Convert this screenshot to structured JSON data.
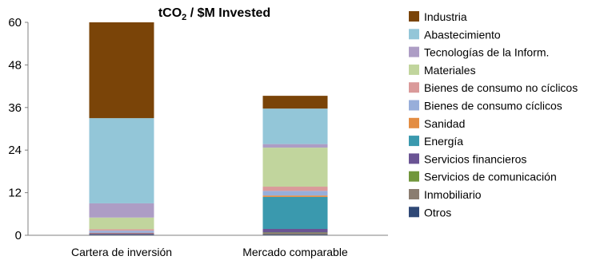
{
  "chart_data": {
    "type": "bar",
    "stacked": true,
    "title_main": "tCO",
    "title_sub": "2",
    "title_rest": " / $M Invested",
    "categories": [
      "Cartera de inversión",
      "Mercado comparable"
    ],
    "ylim": [
      0,
      60
    ],
    "yticks": [
      "0",
      "12",
      "24",
      "36",
      "48",
      "60"
    ],
    "ytick_values": [
      0,
      12,
      24,
      36,
      48,
      60
    ],
    "legend_position": "right",
    "series": [
      {
        "name": "Otros",
        "color": "#2F4876",
        "values": [
          0.2,
          0.2
        ]
      },
      {
        "name": "Inmobiliario",
        "color": "#8B7D70",
        "values": [
          0.1,
          0.5
        ]
      },
      {
        "name": "Servicios de comunicación",
        "color": "#71963B",
        "values": [
          0.0,
          0.1
        ]
      },
      {
        "name": "Servicios financieros",
        "color": "#6A5494",
        "values": [
          0.3,
          1.0
        ]
      },
      {
        "name": "Energía",
        "color": "#3A99AE",
        "values": [
          0.0,
          9.0
        ]
      },
      {
        "name": "Sanidad",
        "color": "#E38D43",
        "values": [
          0.1,
          0.4
        ]
      },
      {
        "name": "Bienes de consumo cíclicos",
        "color": "#98AEDA",
        "values": [
          0.6,
          1.3
        ]
      },
      {
        "name": "Bienes de consumo no cíclicos",
        "color": "#DA9A9A",
        "values": [
          0.4,
          1.2
        ]
      },
      {
        "name": "Materiales",
        "color": "#C1D59D",
        "values": [
          3.3,
          11.0
        ]
      },
      {
        "name": "Tecnologías de la Inform.",
        "color": "#AD9DC5",
        "values": [
          4.0,
          1.0
        ]
      },
      {
        "name": "Abastecimiento",
        "color": "#93C6D8",
        "values": [
          24.0,
          10.0
        ]
      },
      {
        "name": "Industria",
        "color": "#7A4408",
        "values": [
          27.0,
          3.6
        ]
      }
    ]
  }
}
